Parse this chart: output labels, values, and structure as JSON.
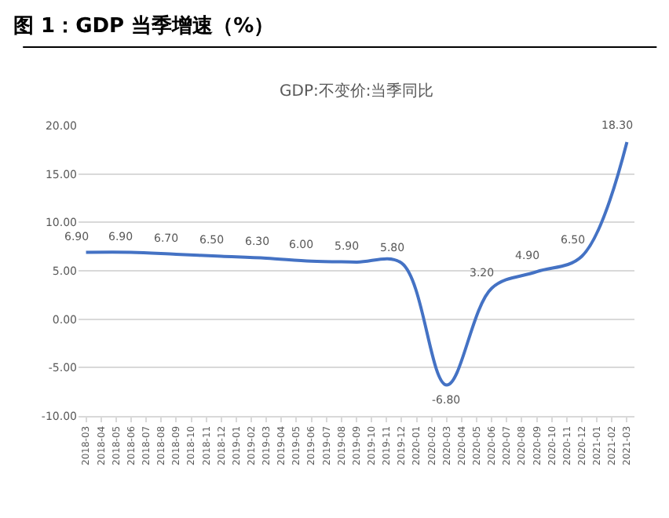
{
  "chart_data": {
    "type": "line",
    "title": "图 1：GDP 当季增速（%）",
    "subtitle": "GDP:不变价:当季同比",
    "categories": [
      "2018-03",
      "2018-04",
      "2018-05",
      "2018-06",
      "2018-07",
      "2018-08",
      "2018-09",
      "2018-10",
      "2018-11",
      "2018-12",
      "2019-01",
      "2019-02",
      "2019-03",
      "2019-04",
      "2019-05",
      "2019-06",
      "2019-07",
      "2019-08",
      "2019-09",
      "2019-10",
      "2019-11",
      "2019-12",
      "2020-01",
      "2020-02",
      "2020-03",
      "2020-04",
      "2020-05",
      "2020-06",
      "2020-07",
      "2020-08",
      "2020-09",
      "2020-10",
      "2020-11",
      "2020-12",
      "2021-01",
      "2021-02",
      "2021-03"
    ],
    "series": [
      {
        "color": "#4472c4",
        "values": [
          6.9,
          null,
          null,
          6.9,
          null,
          null,
          6.7,
          null,
          null,
          6.5,
          null,
          null,
          6.3,
          null,
          null,
          6.0,
          null,
          null,
          5.9,
          null,
          null,
          5.8,
          null,
          null,
          -6.8,
          null,
          null,
          3.2,
          null,
          null,
          4.9,
          null,
          null,
          6.5,
          null,
          null,
          18.3
        ],
        "value_labels": [
          "6.90",
          null,
          null,
          "6.90",
          null,
          null,
          "6.70",
          null,
          null,
          "6.50",
          null,
          null,
          "6.30",
          null,
          null,
          "6.00",
          null,
          null,
          "5.90",
          null,
          null,
          "5.80",
          null,
          null,
          "-6.80",
          null,
          null,
          "3.20",
          null,
          null,
          "4.90",
          null,
          null,
          "6.50",
          null,
          null,
          "18.30"
        ]
      }
    ],
    "ylim": [
      -10,
      20
    ],
    "yticks": [
      {
        "value": -10,
        "label": "-10.00"
      },
      {
        "value": -5,
        "label": "-5.00"
      },
      {
        "value": 0,
        "label": "0.00"
      },
      {
        "value": 5,
        "label": "5.00"
      },
      {
        "value": 10,
        "label": "10.00"
      },
      {
        "value": 15,
        "label": "15.00"
      },
      {
        "value": 20,
        "label": "20.00"
      }
    ],
    "grid": "y",
    "marker": "none",
    "line_style": "solid"
  }
}
